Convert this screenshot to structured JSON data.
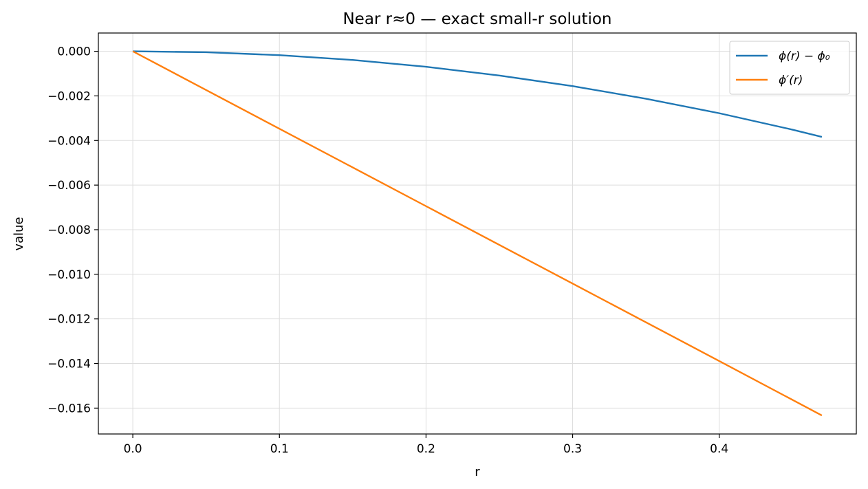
{
  "chart_data": {
    "type": "line",
    "title": "Near r≈0 — exact small-r solution",
    "xlabel": "r",
    "ylabel": "value",
    "xlim": [
      -0.0235,
      0.4935
    ],
    "ylim": [
      -0.01716,
      0.00082
    ],
    "xticks": [
      0.0,
      0.1,
      0.2,
      0.3,
      0.4
    ],
    "xtick_labels": [
      "0.0",
      "0.1",
      "0.2",
      "0.3",
      "0.4"
    ],
    "yticks": [
      0.0,
      -0.002,
      -0.004,
      -0.006,
      -0.008,
      -0.01,
      -0.012,
      -0.014,
      -0.016
    ],
    "ytick_labels": [
      "0.000",
      "−0.002",
      "−0.004",
      "−0.006",
      "−0.008",
      "−0.010",
      "−0.012",
      "−0.014",
      "−0.016"
    ],
    "grid": true,
    "legend_position": "top-right",
    "series": [
      {
        "name": "ϕ(r) − ϕ₀",
        "color": "#1f77b4",
        "x": [
          0.0,
          0.05,
          0.1,
          0.15,
          0.2,
          0.25,
          0.3,
          0.35,
          0.4,
          0.45,
          0.47
        ],
        "y": [
          0.0,
          -4.3e-05,
          -0.000173,
          -0.00039,
          -0.000694,
          -0.001085,
          -0.001562,
          -0.002126,
          -0.002777,
          -0.003514,
          -0.00384
        ]
      },
      {
        "name": "ϕ′(r)",
        "color": "#ff7f0e",
        "x": [
          0.0,
          0.1,
          0.2,
          0.3,
          0.4,
          0.47
        ],
        "y": [
          0.0,
          -0.003472,
          -0.006944,
          -0.010416,
          -0.013888,
          -0.01633
        ]
      }
    ]
  }
}
